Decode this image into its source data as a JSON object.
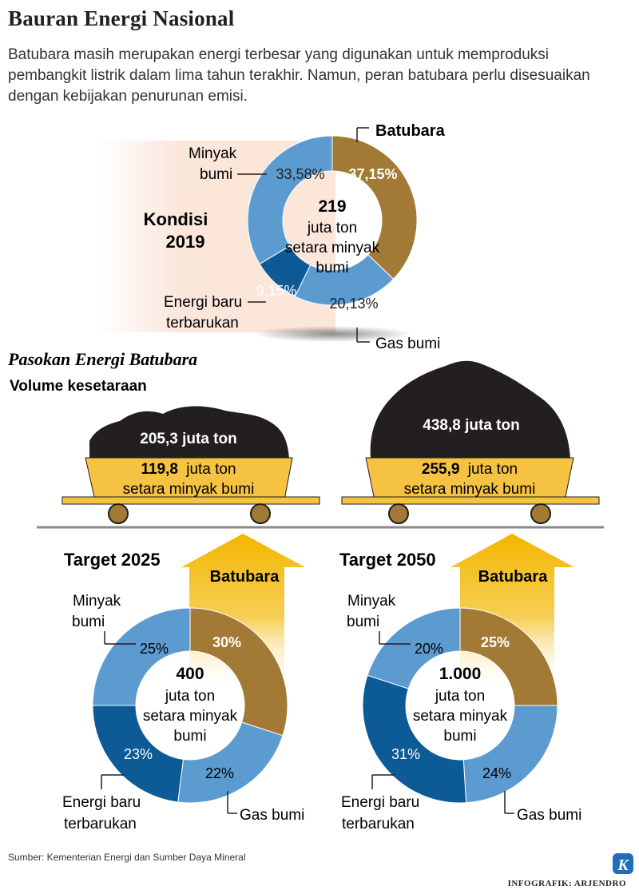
{
  "title": "Bauran Energi Nasional",
  "intro": "Batubara masih merupakan energi terbesar yang digunakan untuk memproduksi pembangkit listrik dalam lima tahun terakhir. Namun, peran batubara perlu disesuaikan dengan kebijakan penurunan emisi.",
  "colors": {
    "batubara": "#a37a35",
    "minyak": "#5b9bd0",
    "gas": "#5b9bd0",
    "ebt": "#0c5a96",
    "gold": "#f5c242",
    "coal": "#231f20"
  },
  "chart_data": [
    {
      "type": "pie",
      "id": "kondisi2019",
      "title": "Kondisi 2019",
      "center_value": "219",
      "center_text": [
        "juta ton",
        "setara minyak",
        "bumi"
      ],
      "slices": [
        {
          "name": "Batubara",
          "value": 37.15,
          "label": "37,15%"
        },
        {
          "name": "Gas bumi",
          "value": 20.13,
          "label": "20,13%"
        },
        {
          "name": "Energi baru terbarukan",
          "value": 9.15,
          "label": "9,15%"
        },
        {
          "name": "Minyak bumi",
          "value": 33.58,
          "label": "33,58%"
        }
      ]
    },
    {
      "type": "pie",
      "id": "target2025",
      "title": "Target 2025",
      "center_value": "400",
      "center_text": [
        "juta ton",
        "setara minyak",
        "bumi"
      ],
      "slices": [
        {
          "name": "Batubara",
          "value": 30,
          "label": "30%"
        },
        {
          "name": "Gas bumi",
          "value": 22,
          "label": "22%"
        },
        {
          "name": "Energi baru terbarukan",
          "value": 23,
          "label": "23%"
        },
        {
          "name": "Minyak bumi",
          "value": 25,
          "label": "25%"
        }
      ]
    },
    {
      "type": "pie",
      "id": "target2050",
      "title": "Target 2050",
      "center_value": "1.000",
      "center_text": [
        "juta ton",
        "setara minyak",
        "bumi"
      ],
      "slices": [
        {
          "name": "Batubara",
          "value": 25,
          "label": "25%"
        },
        {
          "name": "Gas bumi",
          "value": 24,
          "label": "24%"
        },
        {
          "name": "Energi baru terbarukan",
          "value": 31,
          "label": "31%"
        },
        {
          "name": "Minyak bumi",
          "value": 20,
          "label": "20%"
        }
      ]
    },
    {
      "type": "bar",
      "id": "pasokan",
      "title": "Pasokan Energi Batubara",
      "subtitle": "Volume kesetaraan",
      "categories": [
        "Target 2025",
        "Target 2050"
      ],
      "series": [
        {
          "name": "juta ton",
          "values": [
            205.3,
            438.8
          ],
          "labels": [
            "205,3 juta ton",
            "438,8 juta ton"
          ]
        },
        {
          "name": "juta ton setara minyak bumi",
          "values": [
            119.8,
            255.9
          ],
          "labels": [
            "119,8",
            "255,9"
          ]
        }
      ]
    }
  ],
  "labels": {
    "batubara": "Batubara",
    "minyak": [
      "Minyak",
      "bumi"
    ],
    "ebt": [
      "Energi baru",
      "terbarukan"
    ],
    "gas": "Gas bumi",
    "kondisi": [
      "Kondisi",
      "2019"
    ],
    "cart_unit_line1": "juta ton",
    "cart_unit_line2": "setara minyak bumi"
  },
  "source": "Sumber: Kementerian Energi dan Sumber Daya Mineral",
  "credit": "INFOGRAFIK: ARJENDRO",
  "logo_letter": "K"
}
